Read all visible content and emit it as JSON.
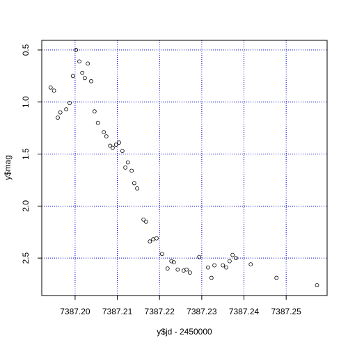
{
  "chart_data": {
    "type": "scatter",
    "xlabel": "y$jd - 2450000",
    "ylabel": "y$mag",
    "xlim": [
      7387.1921,
      7387.2597
    ],
    "ylim": [
      2.86,
      0.407
    ],
    "xticks": [
      {
        "value": 7387.2,
        "label": "7387.20"
      },
      7387.21,
      7387.22,
      7387.23,
      7387.24,
      7387.25
    ],
    "yticks": [
      0.5,
      {
        "value": 1,
        "label": "1.0"
      },
      1.5,
      {
        "value": 2,
        "label": "2.0"
      },
      2.5
    ],
    "grid": true,
    "grid_color": "#0000cc",
    "color": "#000000",
    "x": [
      7387.1942,
      7387.195,
      7387.1959,
      7387.1965,
      7387.1979,
      7387.1987,
      7387.1995,
      7387.2002,
      7387.201,
      7387.2017,
      7387.2023,
      7387.203,
      7387.2038,
      7387.2046,
      7387.2054,
      7387.2068,
      7387.2074,
      7387.2083,
      7387.2089,
      7387.2097,
      7387.2104,
      7387.2112,
      7387.2119,
      7387.2125,
      7387.2134,
      7387.214,
      7387.2147,
      7387.2162,
      7387.2168,
      7387.2177,
      7387.2185,
      7387.2193,
      7387.2206,
      7387.2219,
      7387.2228,
      7387.2234,
      7387.2243,
      7387.2257,
      7387.2264,
      7387.2272,
      7387.2294,
      7387.2315,
      7387.2323,
      7387.233,
      7387.235,
      7387.2358,
      7387.2366,
      7387.2373,
      7387.2381,
      7387.2416,
      7387.2477,
      7387.2573
    ],
    "values": [
      0.86,
      0.89,
      1.15,
      1.1,
      1.07,
      1.01,
      0.75,
      0.5,
      0.61,
      0.72,
      0.77,
      0.63,
      0.8,
      1.09,
      1.2,
      1.29,
      1.33,
      1.42,
      1.44,
      1.41,
      1.39,
      1.47,
      1.63,
      1.58,
      1.66,
      1.78,
      1.83,
      2.13,
      2.15,
      2.34,
      2.32,
      2.31,
      2.46,
      2.6,
      2.53,
      2.54,
      2.61,
      2.62,
      2.61,
      2.64,
      2.49,
      2.59,
      2.69,
      2.57,
      2.57,
      2.59,
      2.53,
      2.47,
      2.5,
      2.56,
      2.69,
      2.76
    ]
  }
}
